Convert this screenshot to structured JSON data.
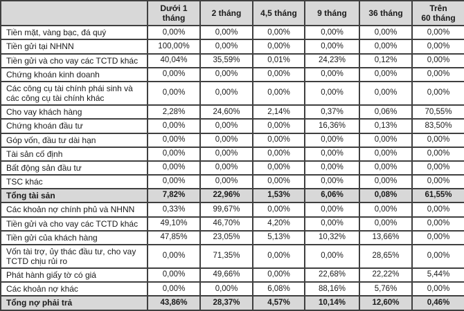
{
  "colors": {
    "shade_bg": "#d8d8d8",
    "border": "#3f3f3f",
    "text": "#1a1a1a"
  },
  "chart_data": {
    "type": "table",
    "title": "",
    "unit": "%",
    "columns": [
      "Dưới 1 tháng",
      "2 tháng",
      "4,5 tháng",
      "9 tháng",
      "36 tháng",
      "Trên\n60 tháng"
    ],
    "rows": [
      {
        "label": "Tiền mặt, vàng bạc, đá quý",
        "values": [
          "0,00%",
          "0,00%",
          "0,00%",
          "0,00%",
          "0,00%",
          "0,00%"
        ],
        "total": false
      },
      {
        "label": "Tiền gửi tại NHNN",
        "values": [
          "100,00%",
          "0,00%",
          "0,00%",
          "0,00%",
          "0,00%",
          "0,00%"
        ],
        "total": false
      },
      {
        "label": "Tiền gửi và cho vay các TCTD khác",
        "values": [
          "40,04%",
          "35,59%",
          "0,01%",
          "24,23%",
          "0,12%",
          "0,00%"
        ],
        "total": false
      },
      {
        "label": "Chứng khoán kinh doanh",
        "values": [
          "0,00%",
          "0,00%",
          "0,00%",
          "0,00%",
          "0,00%",
          "0,00%"
        ],
        "total": false
      },
      {
        "label": "Các công cụ tài chính phái sinh và các công cụ tài chính khác",
        "values": [
          "0,00%",
          "0,00%",
          "0,00%",
          "0,00%",
          "0,00%",
          "0,00%"
        ],
        "total": false
      },
      {
        "label": "Cho vay khách hàng",
        "values": [
          "2,28%",
          "24,60%",
          "2,14%",
          "0,37%",
          "0,06%",
          "70,55%"
        ],
        "total": false
      },
      {
        "label": "Chứng khoán đầu tư",
        "values": [
          "0,00%",
          "0,00%",
          "0,00%",
          "16,36%",
          "0,13%",
          "83,50%"
        ],
        "total": false
      },
      {
        "label": "Góp vốn, đầu tư dài hạn",
        "values": [
          "0,00%",
          "0,00%",
          "0,00%",
          "0,00%",
          "0,00%",
          "0,00%"
        ],
        "total": false
      },
      {
        "label": "Tài sản cố định",
        "values": [
          "0,00%",
          "0,00%",
          "0,00%",
          "0,00%",
          "0,00%",
          "0,00%"
        ],
        "total": false
      },
      {
        "label": "Bất động sản đầu tư",
        "values": [
          "0,00%",
          "0,00%",
          "0,00%",
          "0,00%",
          "0,00%",
          "0,00%"
        ],
        "total": false
      },
      {
        "label": "TSC khác",
        "values": [
          "0,00%",
          "0,00%",
          "0,00%",
          "0,00%",
          "0,00%",
          "0,00%"
        ],
        "total": false
      },
      {
        "label": "Tổng tài sản",
        "values": [
          "7,82%",
          "22,96%",
          "1,53%",
          "6,06%",
          "0,08%",
          "61,55%"
        ],
        "total": true
      },
      {
        "label": "Các khoản nợ chính phủ và NHNN",
        "values": [
          "0,33%",
          "99,67%",
          "0,00%",
          "0,00%",
          "0,00%",
          "0,00%"
        ],
        "total": false
      },
      {
        "label": "Tiền gửi và cho vay các TCTD khác",
        "values": [
          "49,10%",
          "46,70%",
          "4,20%",
          "0,00%",
          "0,00%",
          "0,00%"
        ],
        "total": false
      },
      {
        "label": "Tiền gửi của khách hàng",
        "values": [
          "47,85%",
          "23,05%",
          "5,13%",
          "10,32%",
          "13,66%",
          "0,00%"
        ],
        "total": false
      },
      {
        "label": "Vốn tài trợ, ủy thác đầu tư, cho vay TCTD chịu rủi ro",
        "values": [
          "0,00%",
          "71,35%",
          "0,00%",
          "0,00%",
          "28,65%",
          "0,00%"
        ],
        "total": false
      },
      {
        "label": "Phát hành giấy tờ có giá",
        "values": [
          "0,00%",
          "49,66%",
          "0,00%",
          "22,68%",
          "22,22%",
          "5,44%"
        ],
        "total": false
      },
      {
        "label": "Các khoản nợ khác",
        "values": [
          "0,00%",
          "0,00%",
          "6,08%",
          "88,16%",
          "5,76%",
          "0,00%"
        ],
        "total": false
      },
      {
        "label": "Tổng nợ phải trả",
        "values": [
          "43,86%",
          "28,37%",
          "4,57%",
          "10,14%",
          "12,60%",
          "0,46%"
        ],
        "total": true
      }
    ]
  }
}
